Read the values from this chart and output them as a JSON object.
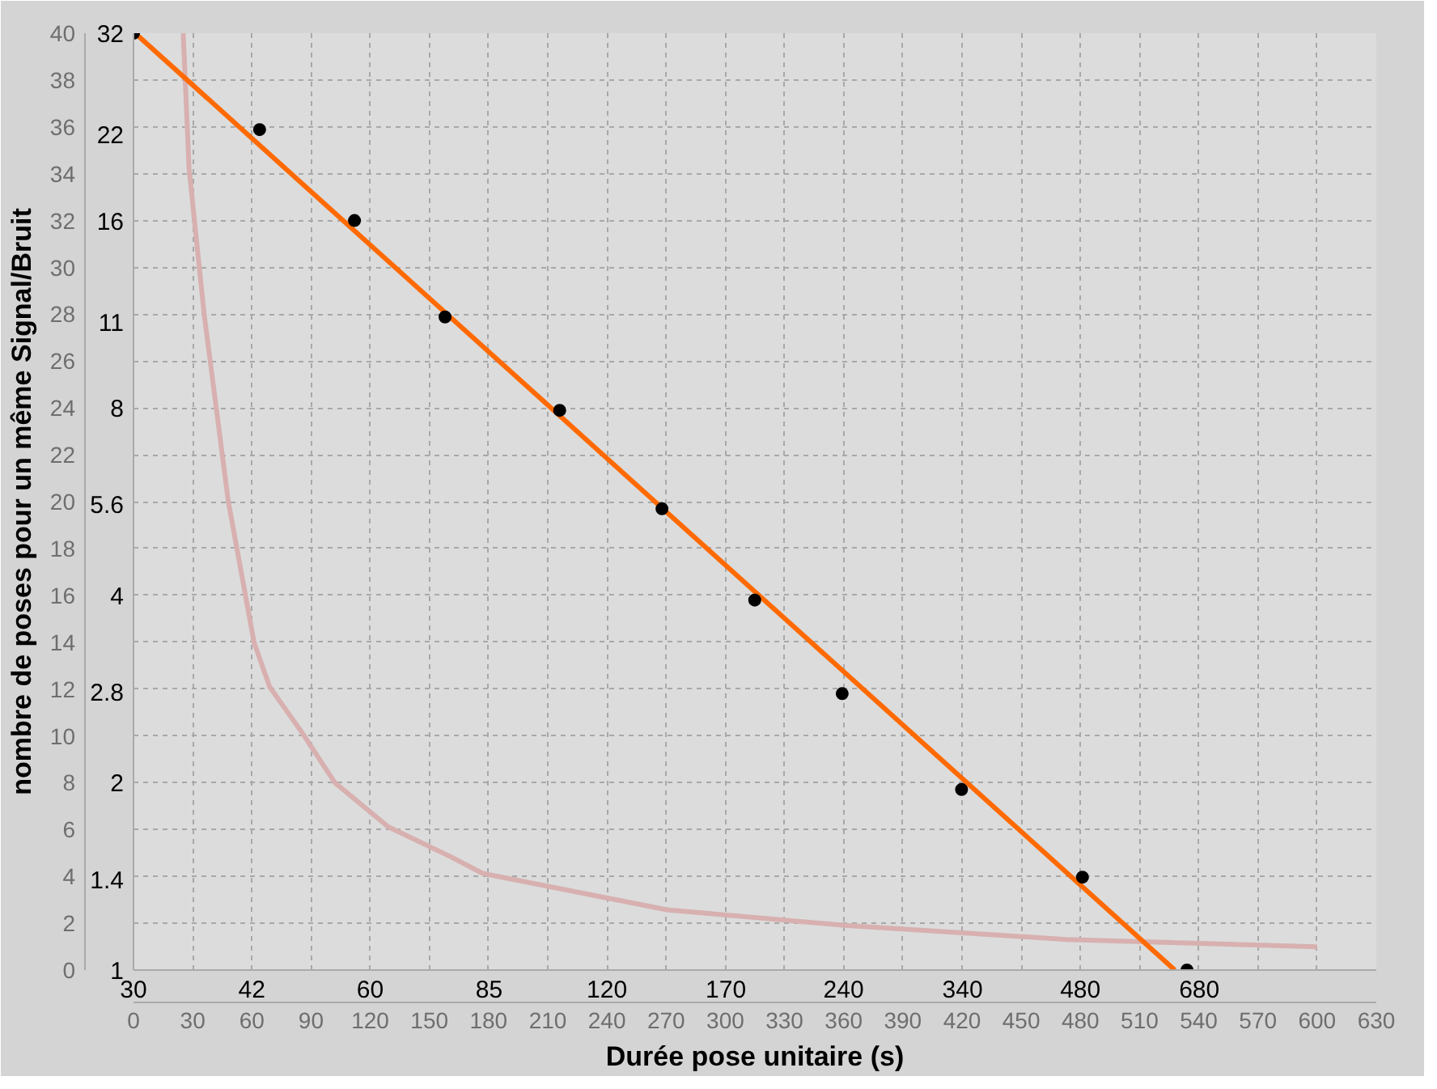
{
  "chart_data": {
    "type": "scatter",
    "xlabel": "Durée pose unitaire (s)",
    "y2label": "nombre de poses pour un même Signal/Bruit",
    "xlim": [
      30,
      1142
    ],
    "xticks": [
      30,
      {
        "value": 42.43,
        "label": "42"
      },
      60,
      85,
      120,
      170,
      240,
      340,
      480,
      680
    ],
    "ylim": [
      1,
      32
    ],
    "yticks": [
      1,
      1.4,
      2,
      2.8,
      4,
      5.6,
      8,
      11,
      16,
      22,
      32
    ],
    "x2lim": [
      0,
      630
    ],
    "x2ticks": [
      0,
      30,
      60,
      90,
      120,
      150,
      180,
      210,
      240,
      270,
      300,
      330,
      360,
      390,
      420,
      450,
      480,
      510,
      540,
      570,
      600,
      630
    ],
    "y2lim": [
      0,
      40
    ],
    "y2ticks": [
      0,
      2,
      4,
      6,
      8,
      10,
      12,
      14,
      16,
      18,
      20,
      22,
      24,
      26,
      28,
      30,
      32,
      34,
      36,
      38,
      40
    ],
    "log": "xy",
    "grid": true,
    "marker": "circle",
    "series": [
      {
        "type": "line",
        "marker": "none",
        "color": "#d8b0b0",
        "x": [
          34.7,
          35.3,
          36.9,
          39.6,
          42.7,
          44.7,
          49.0,
          54.1,
          63.2,
          76.0,
          83.4,
          143,
          241,
          461,
          960
        ],
        "values": [
          32,
          19.4,
          11.3,
          5.66,
          3.36,
          2.85,
          2.42,
          2.0,
          1.7,
          1.52,
          1.43,
          1.25,
          1.18,
          1.12,
          1.09
        ]
      },
      {
        "type": "line",
        "marker": "none",
        "color": "#ff6a00",
        "x": [
          30.4,
          633
        ],
        "values": [
          31.7,
          1
        ]
      },
      {
        "color": "#000000",
        "x": [
          30,
          43.4,
          57.3,
          74.7,
          104.5,
          141,
          185,
          239,
          339,
          483,
          656
        ],
        "values": [
          32,
          22.4,
          16,
          11.2,
          7.93,
          5.51,
          3.93,
          2.78,
          1.95,
          1.41,
          1
        ]
      }
    ]
  }
}
